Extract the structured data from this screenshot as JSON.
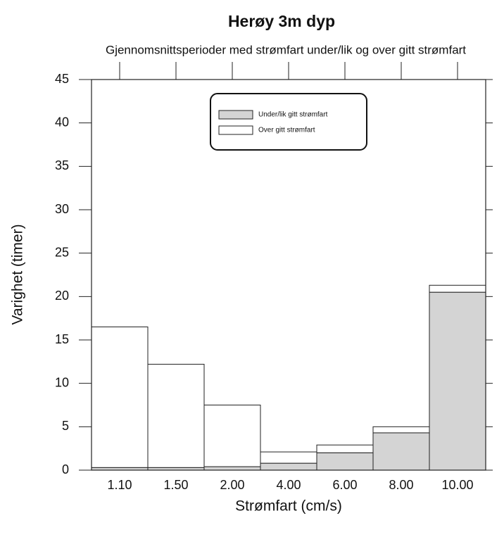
{
  "chart_data": {
    "type": "stacked_bar",
    "title": "Herøy 3m dyp",
    "subtitle": "Gjennomsnittsperioder med strømfart under/lik og over gitt strømfart",
    "x_label": "Strømfart (cm/s)",
    "y_label": "Varighet (timer)",
    "categories": [
      "1.10",
      "1.50",
      "2.00",
      "4.00",
      "6.00",
      "8.00",
      "10.00"
    ],
    "series": [
      {
        "name": "Under/lik gitt strømfart",
        "color": "#d4d4d4",
        "values": [
          0.3,
          0.3,
          0.4,
          0.8,
          2.0,
          4.3,
          20.5
        ]
      },
      {
        "name": "Over gitt strømfart",
        "color": "#ffffff",
        "values": [
          16.2,
          11.9,
          7.1,
          1.3,
          0.9,
          0.7,
          0.8
        ]
      }
    ],
    "ylim": [
      0,
      45
    ],
    "yticks": [
      0,
      5,
      10,
      15,
      20,
      25,
      30,
      35,
      40,
      45
    ],
    "legend": "upper center",
    "grid": false
  }
}
